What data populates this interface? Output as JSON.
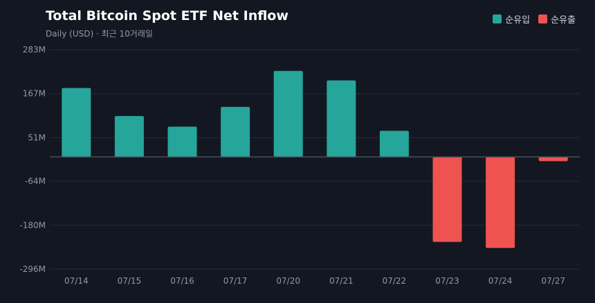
{
  "header": {
    "title": "Total Bitcoin Spot ETF Net Inflow",
    "subtitle": "Daily (USD) · 최근 10거래일"
  },
  "legend": {
    "inflow_label": "순유입",
    "outflow_label": "순유출"
  },
  "colors": {
    "inflow": "#26a69a",
    "outflow": "#ef5350",
    "grid": "#262b36",
    "zero_line": "#4a4f5c"
  },
  "chart_data": {
    "type": "bar",
    "title": "Total Bitcoin Spot ETF Net Inflow",
    "subtitle": "Daily (USD) · 최근 10거래일",
    "categories": [
      "07/14",
      "07/15",
      "07/16",
      "07/17",
      "07/20",
      "07/21",
      "07/22",
      "07/23",
      "07/24",
      "07/27"
    ],
    "series": [
      {
        "values": [
          182,
          108,
          80,
          132,
          227,
          202,
          69,
          -224,
          -240,
          -11
        ]
      }
    ],
    "unit": "M USD",
    "ylim": [
      -296,
      283
    ],
    "yticks": [
      283,
      167,
      51,
      -64,
      -180,
      -296
    ],
    "ytick_labels": [
      "283M",
      "167M",
      "51M",
      "-64M",
      "-180M",
      "-296M"
    ],
    "grid": true,
    "legend_position": "top-right"
  }
}
